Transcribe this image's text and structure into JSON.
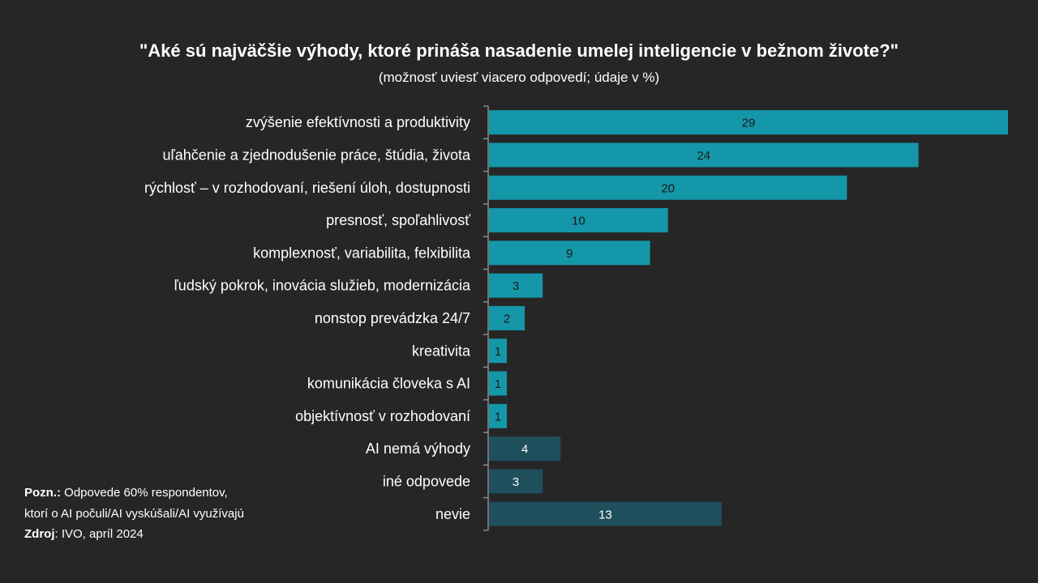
{
  "chart_data": {
    "type": "bar",
    "orientation": "horizontal",
    "title": "\"Aké sú najväčšie výhody, ktoré prináša nasadenie umelej inteligencie v bežnom živote?\"",
    "subtitle": "(možnosť uviesť viacero odpovedí; údaje v %)",
    "categories": [
      "zvýšenie efektívnosti a produktivity",
      "uľahčenie a zjednodušenie práce, štúdia, života",
      "rýchlosť – v rozhodovaní, riešení úloh, dostupnosti",
      "presnosť, spoľahlivosť",
      "komplexnosť, variabilita, felxibilita",
      "ľudský pokrok, inovácia služieb, modernizácia",
      "nonstop prevádzka 24/7",
      "kreativita",
      "komunikácia človeka s AI",
      "objektívnosť v rozhodovaní",
      "AI nemá výhody",
      "iné odpovede",
      "nevie"
    ],
    "values": [
      29,
      24,
      20,
      10,
      9,
      3,
      2,
      1,
      1,
      1,
      4,
      3,
      13
    ],
    "bar_colors": [
      "#1497a8",
      "#1497a8",
      "#1497a8",
      "#1497a8",
      "#1497a8",
      "#1497a8",
      "#1497a8",
      "#1497a8",
      "#1497a8",
      "#1497a8",
      "#1f4e5c",
      "#1f4e5c",
      "#1f4e5c"
    ],
    "value_label_colors": [
      "#1a1a1a",
      "#1a1a1a",
      "#1a1a1a",
      "#1a1a1a",
      "#1a1a1a",
      "#1a1a1a",
      "#1a1a1a",
      "#1a1a1a",
      "#1a1a1a",
      "#1a1a1a",
      "#ffffff",
      "#ffffff",
      "#ffffff"
    ],
    "xlim": [
      0,
      29
    ],
    "grid": false,
    "legend": "none"
  },
  "notes": {
    "label": "Pozn.:",
    "line1": " Odpovede 60% respondentov,",
    "line2": "ktorí o AI počuli/AI vyskúšali/AI využívajú"
  },
  "source": {
    "label": "Zdroj",
    "text": ": IVO, apríl 2024"
  },
  "colors": {
    "background": "#262626",
    "primary_bar": "#1497a8",
    "secondary_bar": "#1f4e5c",
    "axis": "#8c8c8c"
  }
}
